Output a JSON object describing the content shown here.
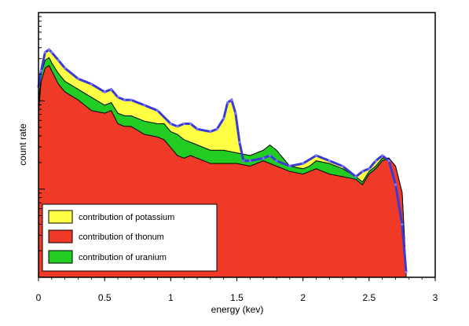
{
  "chart_data": {
    "type": "area",
    "xlabel": "energy (kev)",
    "ylabel": "count rate",
    "xlim": [
      0,
      3
    ],
    "ylim": [
      0,
      100
    ],
    "y_scale": "log",
    "grid": false,
    "x_ticks": [
      "0",
      "0.5",
      "1",
      "1.5",
      "2",
      "2.5",
      "3"
    ],
    "legend_position": "bottom-left",
    "colors": {
      "thorium": "#f03a28",
      "uranium": "#22cc22",
      "potassium": "#ffff44",
      "total_line": "#3a3ad8",
      "frame": "#000000"
    },
    "series": [
      {
        "name": "contribution of potassium",
        "color": "#ffff44",
        "x": [
          0,
          0.02,
          0.05,
          0.08,
          0.1,
          0.15,
          0.2,
          0.3,
          0.4,
          0.5,
          0.55,
          0.6,
          0.65,
          0.7,
          0.8,
          0.9,
          1.0,
          1.05,
          1.1,
          1.15,
          1.2,
          1.3,
          1.35,
          1.4,
          1.43,
          1.46,
          1.49,
          1.52,
          1.55,
          1.6,
          1.7,
          1.75,
          1.8,
          1.9,
          2.0,
          2.1,
          2.2,
          2.3,
          2.4,
          2.45,
          2.5,
          2.55,
          2.6,
          2.65,
          2.7,
          2.75,
          2.78
        ],
        "values": [
          72,
          78,
          85,
          86,
          85,
          82,
          79,
          75,
          73,
          70,
          71,
          68,
          67,
          67,
          65,
          63,
          58,
          57,
          58,
          58,
          56,
          55,
          56,
          60,
          66,
          67,
          62,
          51,
          44,
          44,
          45,
          46,
          44,
          42,
          43,
          46,
          44,
          42,
          38,
          40,
          41,
          44,
          46,
          44,
          35,
          20,
          2
        ]
      },
      {
        "name": "contribution of thonum",
        "color": "#f03a28",
        "x": [
          0,
          0.02,
          0.05,
          0.08,
          0.1,
          0.15,
          0.2,
          0.3,
          0.4,
          0.5,
          0.55,
          0.6,
          0.65,
          0.7,
          0.8,
          0.9,
          0.95,
          1.0,
          1.05,
          1.1,
          1.15,
          1.2,
          1.3,
          1.35,
          1.4,
          1.5,
          1.6,
          1.7,
          1.75,
          1.8,
          1.9,
          2.0,
          2.05,
          2.1,
          2.15,
          2.2,
          2.3,
          2.4,
          2.45,
          2.5,
          2.55,
          2.6,
          2.65,
          2.7,
          2.75,
          2.78
        ],
        "values": [
          62,
          74,
          79,
          80,
          78,
          73,
          70,
          67,
          63,
          62,
          63,
          58,
          57,
          57,
          54,
          53,
          52,
          49,
          46,
          45,
          46,
          45,
          43,
          43,
          43,
          43,
          42,
          44,
          43,
          42,
          40,
          39,
          40,
          41,
          40,
          39,
          38,
          37,
          35,
          39,
          41,
          44,
          45,
          42,
          32,
          2
        ]
      },
      {
        "name": "contribution of uranium",
        "color": "#22cc22",
        "x": [
          0,
          0.02,
          0.05,
          0.08,
          0.1,
          0.15,
          0.2,
          0.3,
          0.4,
          0.5,
          0.55,
          0.6,
          0.65,
          0.7,
          0.8,
          0.9,
          0.95,
          1.0,
          1.05,
          1.1,
          1.15,
          1.2,
          1.3,
          1.4,
          1.5,
          1.6,
          1.65,
          1.7,
          1.75,
          1.8,
          1.9,
          2.0,
          2.05,
          2.1,
          2.2,
          2.3,
          2.4,
          2.45,
          2.5,
          2.55,
          2.6,
          2.65,
          2.7,
          2.75,
          2.78
        ],
        "values": [
          66,
          77,
          82,
          83,
          81,
          77,
          74,
          71,
          68,
          65,
          66,
          62,
          61,
          61,
          59,
          58,
          58,
          55,
          54,
          52,
          51,
          50,
          48,
          48,
          47,
          46,
          47,
          48,
          50,
          48,
          42,
          41,
          42,
          44,
          43,
          41,
          38,
          36,
          40,
          42,
          45,
          45,
          42,
          32,
          2
        ]
      }
    ],
    "stack_order_drawn": [
      "contribution of potassium",
      "contribution of uranium",
      "contribution of thonum"
    ]
  }
}
